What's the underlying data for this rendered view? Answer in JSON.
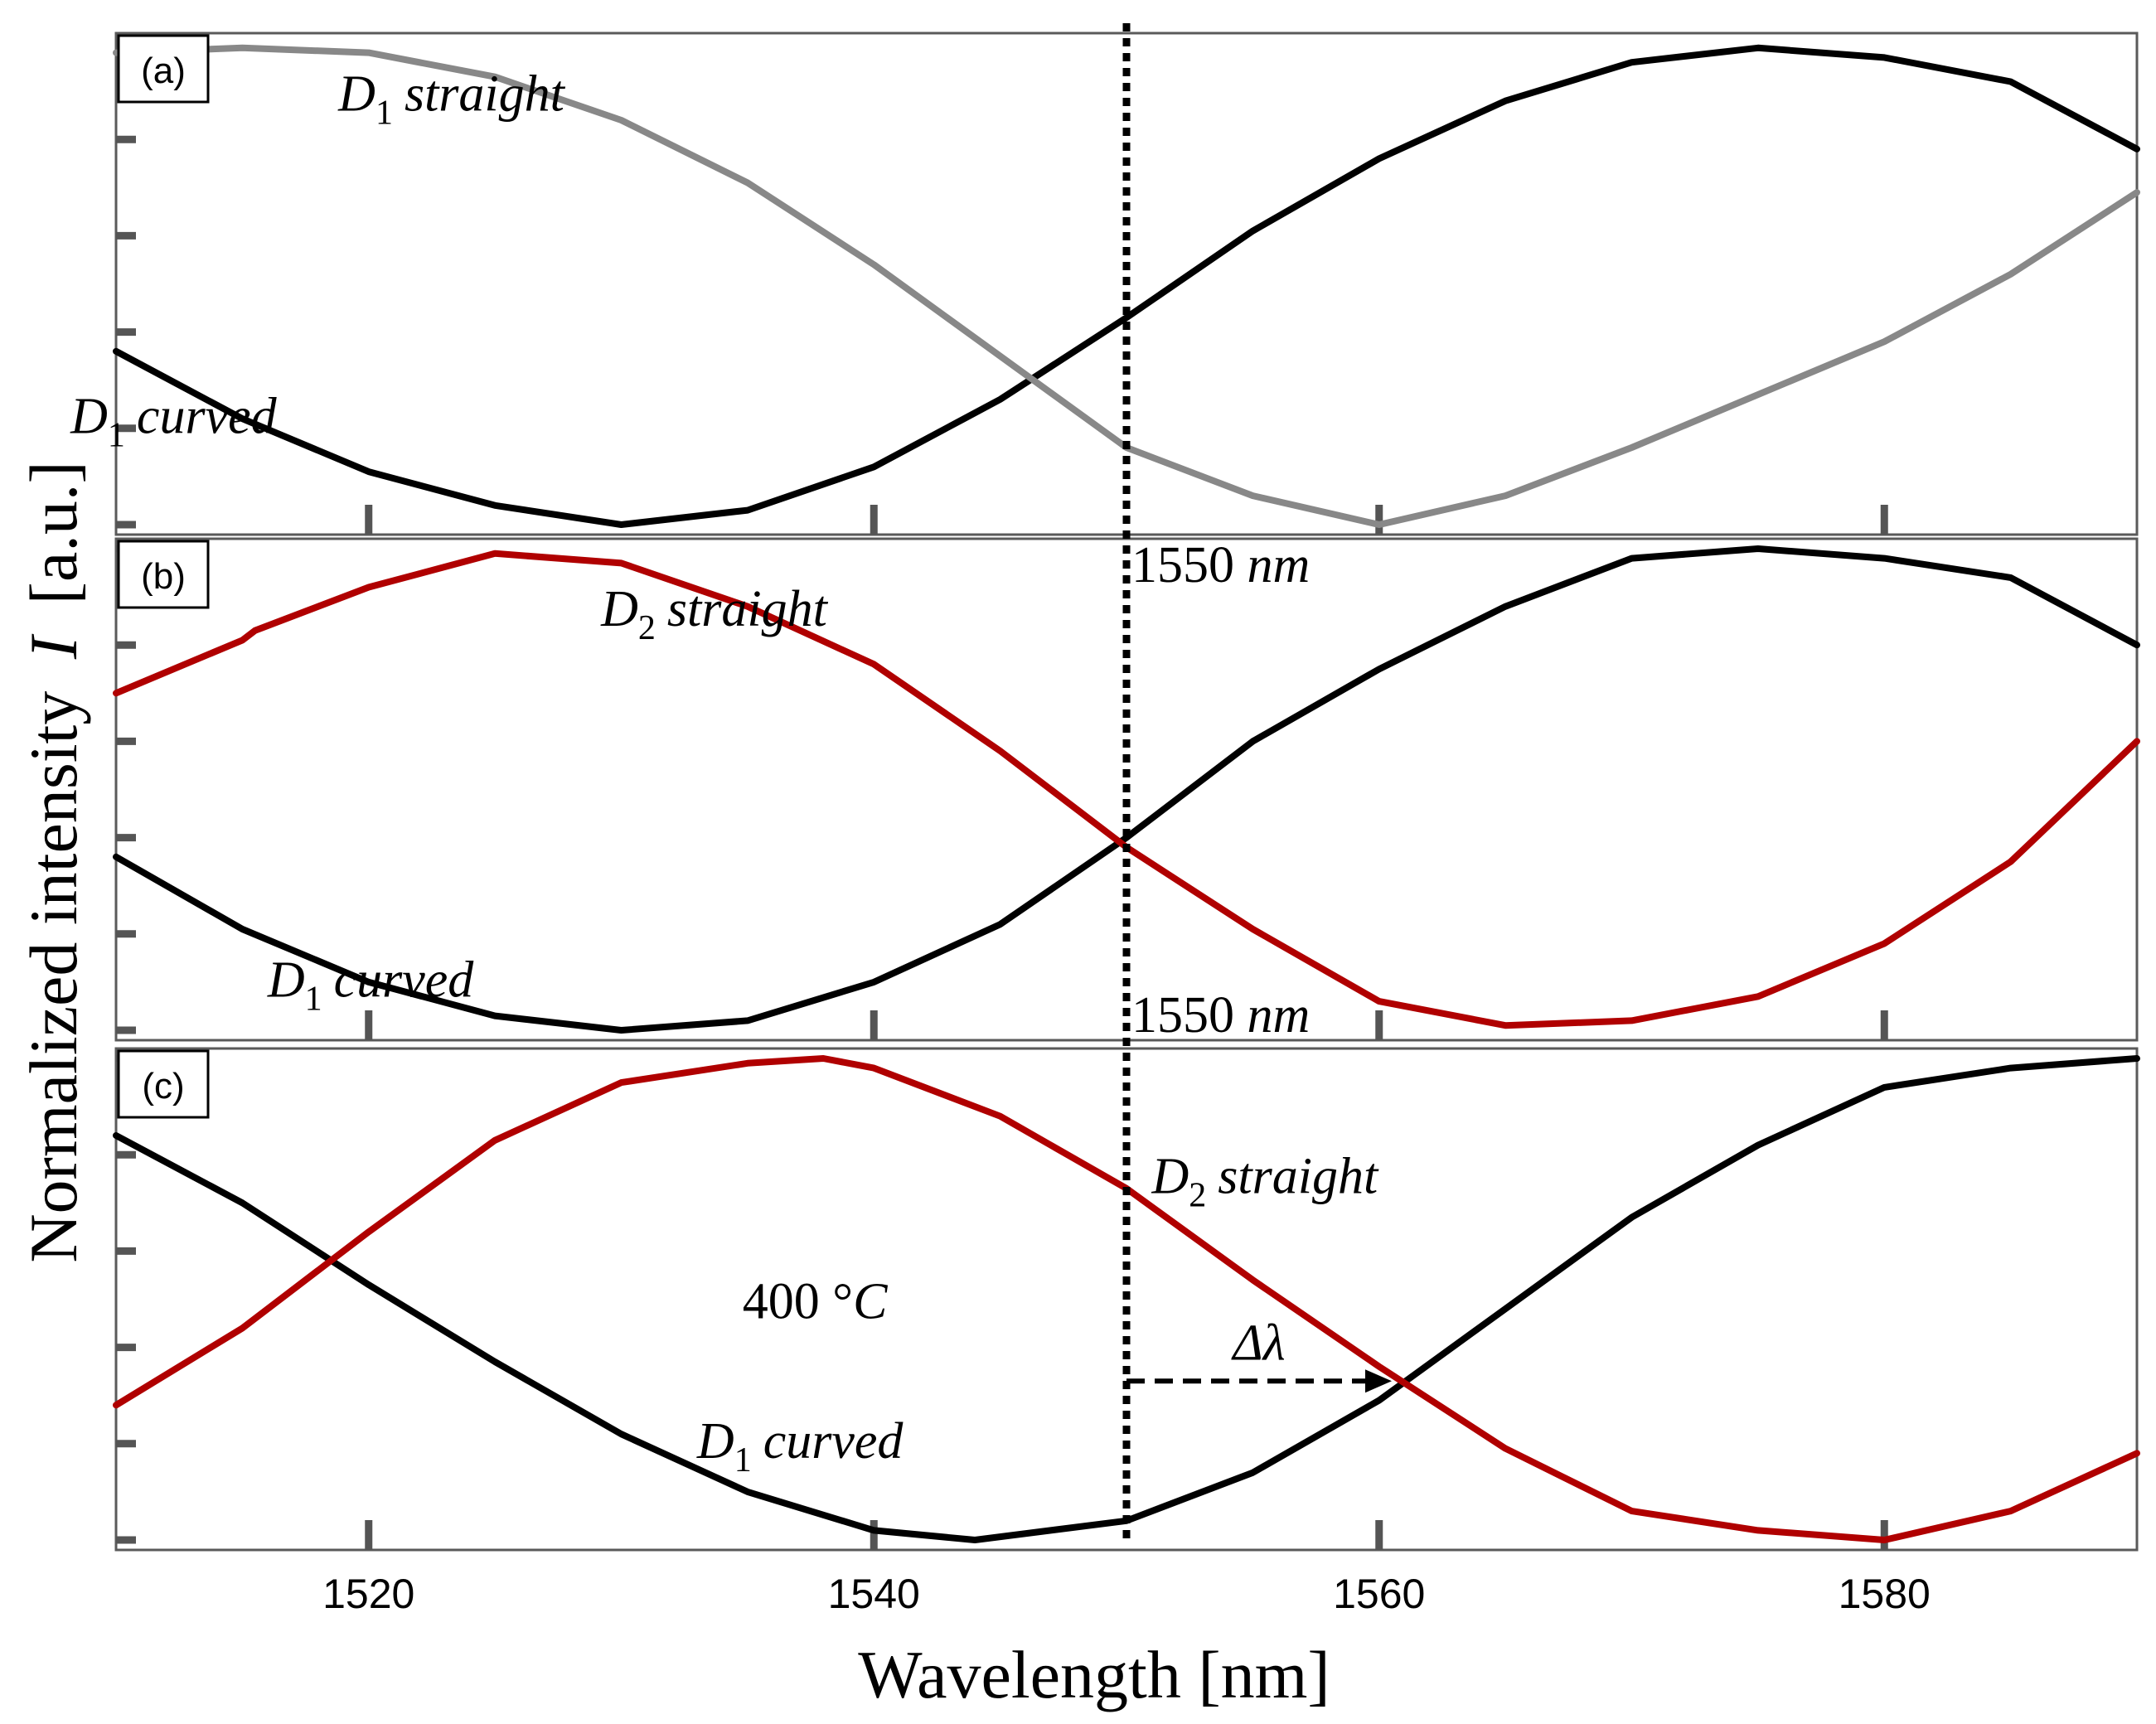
{
  "chart_data": {
    "type": "line",
    "xlabel": "Wavelength [nm]",
    "ylabel": "Normalized intensity",
    "ylabel_symbol": "I",
    "ylabel_unit": "[a.u.]",
    "xlim": [
      1510,
      1590
    ],
    "ylim": [
      0,
      1
    ],
    "xticks": [
      1520,
      1540,
      1560,
      1580
    ],
    "xtick_labels": [
      "1520",
      "1540",
      "1560",
      "1580"
    ],
    "yticks": [
      0,
      0.2,
      0.4,
      0.6,
      0.8,
      1.0
    ],
    "colors": {
      "black": "#000000",
      "gray": "#888888",
      "red": "#b00000"
    },
    "marker_line": {
      "x": 1550,
      "label": "1550",
      "unit": "nm"
    },
    "panels": [
      {
        "label": "(a)",
        "series": [
          {
            "name": "D1 curved",
            "color": "#000000",
            "x": [
              1510,
              1515,
              1520,
              1525,
              1530,
              1535,
              1540,
              1545,
              1550,
              1555,
              1560,
              1565,
              1570,
              1575,
              1580,
              1585,
              1590
            ],
            "y": [
              0.36,
              0.22,
              0.11,
              0.04,
              0.0,
              0.03,
              0.12,
              0.26,
              0.43,
              0.61,
              0.76,
              0.88,
              0.96,
              0.99,
              0.97,
              0.92,
              0.78
            ]
          },
          {
            "name": "D1 straight",
            "color": "#888888",
            "x": [
              1510,
              1515,
              1520,
              1525,
              1530,
              1535,
              1540,
              1545,
              1550,
              1555,
              1560,
              1565,
              1570,
              1575,
              1580,
              1585,
              1590
            ],
            "y": [
              0.98,
              0.99,
              0.98,
              0.93,
              0.84,
              0.71,
              0.54,
              0.35,
              0.16,
              0.06,
              0.0,
              0.06,
              0.16,
              0.27,
              0.38,
              0.52,
              0.69
            ]
          }
        ],
        "annotations": [
          {
            "kind": "sym",
            "sym": "D",
            "sub": "1",
            "text": "straight",
            "x": 1518.8,
            "y": 0.86
          },
          {
            "kind": "sym",
            "sym": "D",
            "sub": "1",
            "text": "curved",
            "x": 1508.2,
            "y": 0.19
          }
        ]
      },
      {
        "label": "(b)",
        "series": [
          {
            "name": "D1 curved",
            "color": "#000000",
            "x": [
              1510,
              1515,
              1520,
              1525,
              1530,
              1535,
              1540,
              1545,
              1550,
              1555,
              1560,
              1565,
              1570,
              1575,
              1580,
              1585,
              1590
            ],
            "y": [
              0.36,
              0.21,
              0.1,
              0.03,
              0.0,
              0.02,
              0.1,
              0.22,
              0.4,
              0.6,
              0.75,
              0.88,
              0.98,
              1.0,
              0.98,
              0.94,
              0.8
            ]
          },
          {
            "name": "D2 straight",
            "color": "#b00000",
            "x": [
              1510,
              1515,
              1515.5,
              1520,
              1525,
              1530,
              1535,
              1540,
              1545,
              1550,
              1555,
              1560,
              1565,
              1570,
              1575,
              1580,
              1585,
              1590
            ],
            "y": [
              0.7,
              0.81,
              0.83,
              0.92,
              0.99,
              0.97,
              0.88,
              0.76,
              0.58,
              0.38,
              0.21,
              0.06,
              0.01,
              0.02,
              0.07,
              0.18,
              0.35,
              0.6
            ]
          }
        ],
        "annotations": [
          {
            "kind": "sym",
            "sym": "D",
            "sub": "2",
            "text": "straight",
            "x": 1529.2,
            "y": 0.84
          },
          {
            "kind": "sym",
            "sym": "D",
            "sub": "1",
            "text": "curved",
            "x": 1516.0,
            "y": 0.07
          }
        ]
      },
      {
        "label": "(c)",
        "series": [
          {
            "name": "D1 curved",
            "color": "#000000",
            "x": [
              1510,
              1515,
              1520,
              1525,
              1530,
              1535,
              1540,
              1544,
              1550,
              1555,
              1560,
              1565,
              1570,
              1575,
              1580,
              1585,
              1590
            ],
            "y": [
              0.84,
              0.7,
              0.53,
              0.37,
              0.22,
              0.1,
              0.02,
              0.0,
              0.04,
              0.14,
              0.29,
              0.48,
              0.67,
              0.82,
              0.94,
              0.98,
              1.0
            ]
          },
          {
            "name": "D2 straight",
            "color": "#b00000",
            "x": [
              1510,
              1515,
              1520,
              1525,
              1530,
              1535,
              1538,
              1540,
              1545,
              1550,
              1555,
              1560,
              1565,
              1570,
              1575,
              1580,
              1585,
              1590
            ],
            "y": [
              0.28,
              0.44,
              0.64,
              0.83,
              0.95,
              0.99,
              1.0,
              0.98,
              0.88,
              0.73,
              0.54,
              0.36,
              0.19,
              0.06,
              0.02,
              0.0,
              0.06,
              0.18
            ]
          }
        ],
        "annotations": [
          {
            "kind": "sym",
            "sym": "D",
            "sub": "2",
            "text": "straight",
            "x": 1551.0,
            "y": 0.72
          },
          {
            "kind": "plain",
            "text": "400 °",
            "italic_tail": "C",
            "x": 1534.8,
            "y": 0.46
          },
          {
            "kind": "sym",
            "sym": "D",
            "sub": "1",
            "text": "curved",
            "x": 1533.0,
            "y": 0.17
          }
        ],
        "shift": {
          "label": "Δλ",
          "x_from": 1550,
          "x_to": 1560.5,
          "y": 0.33
        }
      }
    ]
  }
}
